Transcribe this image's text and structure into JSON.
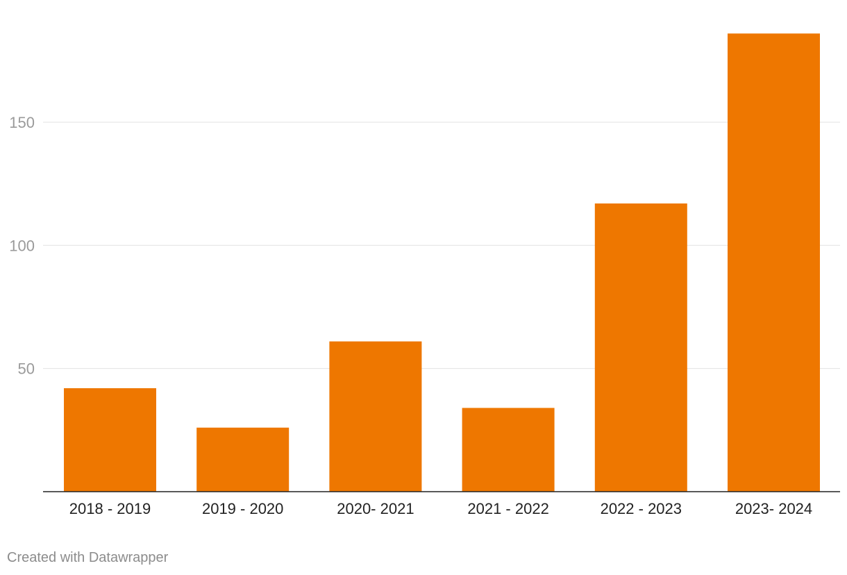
{
  "colors": {
    "bar": "#ee7700",
    "grid": "#e2e2e2",
    "baseline": "#222222",
    "ytick_text": "#9a9a9a",
    "xtick_text": "#222222",
    "credit_text": "#8c8c8c"
  },
  "chart_data": {
    "type": "bar",
    "title": "",
    "xlabel": "",
    "ylabel": "",
    "categories": [
      "2018 - 2019",
      "2019 - 2020",
      "2020- 2021",
      "2021 - 2022",
      "2022 - 2023",
      "2023- 2024"
    ],
    "values": [
      42,
      26,
      61,
      34,
      117,
      186
    ],
    "ylim": [
      0,
      186
    ],
    "yticks": [
      50,
      100,
      150
    ],
    "grid": true,
    "legend": "none"
  },
  "footer": {
    "credit": "Created with Datawrapper"
  }
}
